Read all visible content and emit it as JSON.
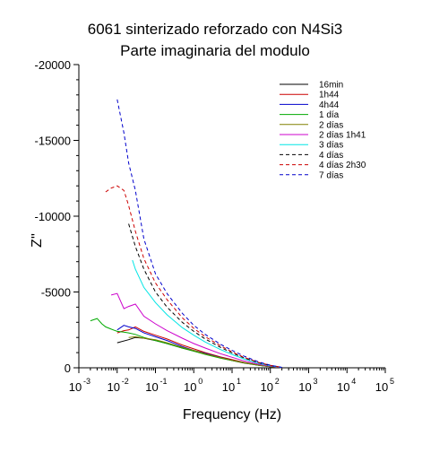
{
  "chart_data": {
    "type": "line",
    "title": "6061 sinterizado reforzado con N4Si3",
    "subtitle": "Parte imaginaria del modulo",
    "xlabel": "Frequency (Hz)",
    "ylabel": "Z''",
    "xscale": "log",
    "xlim": [
      0.001,
      100000
    ],
    "ylim": [
      0,
      -20000
    ],
    "x_ticks": [
      {
        "base": "10",
        "exp": "-3"
      },
      {
        "base": "10",
        "exp": "-2"
      },
      {
        "base": "10",
        "exp": "-1"
      },
      {
        "base": "10",
        "exp": "0"
      },
      {
        "base": "10",
        "exp": "1"
      },
      {
        "base": "10",
        "exp": "2"
      },
      {
        "base": "10",
        "exp": "3"
      },
      {
        "base": "10",
        "exp": "4"
      },
      {
        "base": "10",
        "exp": "5"
      }
    ],
    "y_ticks": [
      "0",
      "-5000",
      "-10000",
      "-15000",
      "-20000"
    ],
    "legend_position": "top-right",
    "grid": false,
    "series": [
      {
        "name": "16min",
        "color": "#000000",
        "dash": "solid",
        "x": [
          0.01,
          0.02,
          0.03,
          0.05,
          0.1,
          0.2,
          0.5,
          1,
          2,
          5,
          10,
          20,
          50,
          100,
          200
        ],
        "y": [
          -1650,
          -1850,
          -2000,
          -1950,
          -1800,
          -1600,
          -1300,
          -1100,
          -900,
          -650,
          -480,
          -320,
          -160,
          -70,
          -10
        ]
      },
      {
        "name": "1h44",
        "color": "#cc0000",
        "dash": "solid",
        "x": [
          0.01,
          0.015,
          0.02,
          0.03,
          0.05,
          0.1,
          0.2,
          0.5,
          1,
          2,
          5,
          10,
          20,
          50,
          100,
          200
        ],
        "y": [
          -2300,
          -2450,
          -2500,
          -2700,
          -2400,
          -2150,
          -1900,
          -1500,
          -1250,
          -1000,
          -720,
          -540,
          -360,
          -180,
          -80,
          -15
        ]
      },
      {
        "name": "4h44",
        "color": "#0000cc",
        "dash": "solid",
        "x": [
          0.01,
          0.015,
          0.02,
          0.03,
          0.05,
          0.1,
          0.2,
          0.5,
          1,
          2,
          5,
          10,
          20,
          50,
          100,
          200
        ],
        "y": [
          -2500,
          -2800,
          -2700,
          -2600,
          -2300,
          -2050,
          -1800,
          -1400,
          -1150,
          -950,
          -680,
          -500,
          -340,
          -170,
          -75,
          -15
        ]
      },
      {
        "name": "1 día",
        "color": "#00aa00",
        "dash": "solid",
        "x": [
          0.002,
          0.003,
          0.004,
          0.005,
          0.007,
          0.01,
          0.015,
          0.02,
          0.03,
          0.05,
          0.1,
          0.2,
          0.5,
          1,
          2,
          5,
          10,
          20,
          50,
          100,
          200
        ],
        "y": [
          -3100,
          -3250,
          -2900,
          -2700,
          -2550,
          -2400,
          -2350,
          -2300,
          -2200,
          -2000,
          -1800,
          -1600,
          -1300,
          -1100,
          -880,
          -640,
          -480,
          -330,
          -160,
          -70,
          -10
        ]
      },
      {
        "name": "2 días",
        "color": "#808000",
        "dash": "solid",
        "x": [
          0.02,
          0.03,
          0.05,
          0.1,
          0.2,
          0.5,
          1,
          2,
          5,
          10,
          20,
          50,
          100,
          200
        ],
        "y": [
          -2000,
          -2050,
          -1950,
          -1850,
          -1650,
          -1350,
          -1150,
          -920,
          -670,
          -500,
          -340,
          -170,
          -75,
          -12
        ]
      },
      {
        "name": "2 días 1h41",
        "color": "#cc00cc",
        "dash": "solid",
        "x": [
          0.007,
          0.01,
          0.015,
          0.02,
          0.03,
          0.05,
          0.1,
          0.2,
          0.5,
          1,
          2,
          5,
          10,
          20,
          50,
          100,
          200
        ],
        "y": [
          -4800,
          -4900,
          -3900,
          -4050,
          -4200,
          -3400,
          -2900,
          -2450,
          -1950,
          -1600,
          -1300,
          -930,
          -690,
          -460,
          -230,
          -100,
          -20
        ]
      },
      {
        "name": "3 días",
        "color": "#00e5e5",
        "dash": "solid",
        "x": [
          0.025,
          0.03,
          0.05,
          0.1,
          0.2,
          0.5,
          1,
          2,
          5,
          10,
          20,
          50,
          100,
          200
        ],
        "y": [
          -7100,
          -6500,
          -5300,
          -4300,
          -3500,
          -2650,
          -2150,
          -1700,
          -1200,
          -880,
          -590,
          -290,
          -130,
          -25
        ]
      },
      {
        "name": "4 días",
        "color": "#000000",
        "dash": "dashed",
        "x": [
          0.02,
          0.03,
          0.05,
          0.1,
          0.2,
          0.5,
          1,
          2,
          5,
          10,
          20,
          50,
          100,
          200
        ],
        "y": [
          -9500,
          -8000,
          -6500,
          -5000,
          -4000,
          -3000,
          -2400,
          -1900,
          -1350,
          -980,
          -660,
          -330,
          -150,
          -30
        ]
      },
      {
        "name": "4 días 2h30",
        "color": "#cc0000",
        "dash": "dashed",
        "x": [
          0.005,
          0.007,
          0.01,
          0.015,
          0.02,
          0.03,
          0.05,
          0.1,
          0.2,
          0.5,
          1,
          2,
          5,
          10,
          20,
          50,
          100,
          200
        ],
        "y": [
          -11600,
          -11850,
          -12000,
          -11700,
          -10700,
          -9000,
          -7200,
          -5600,
          -4500,
          -3300,
          -2600,
          -2050,
          -1450,
          -1050,
          -700,
          -350,
          -160,
          -30
        ]
      },
      {
        "name": "7 días",
        "color": "#0000cc",
        "dash": "dashed",
        "x": [
          0.01,
          0.015,
          0.02,
          0.03,
          0.05,
          0.1,
          0.2,
          0.5,
          1,
          2,
          5,
          10,
          20,
          50,
          100,
          200
        ],
        "y": [
          -17700,
          -15500,
          -13500,
          -11700,
          -8500,
          -6200,
          -4900,
          -3600,
          -2800,
          -2200,
          -1550,
          -1150,
          -780,
          -380,
          -170,
          -30
        ]
      }
    ]
  }
}
